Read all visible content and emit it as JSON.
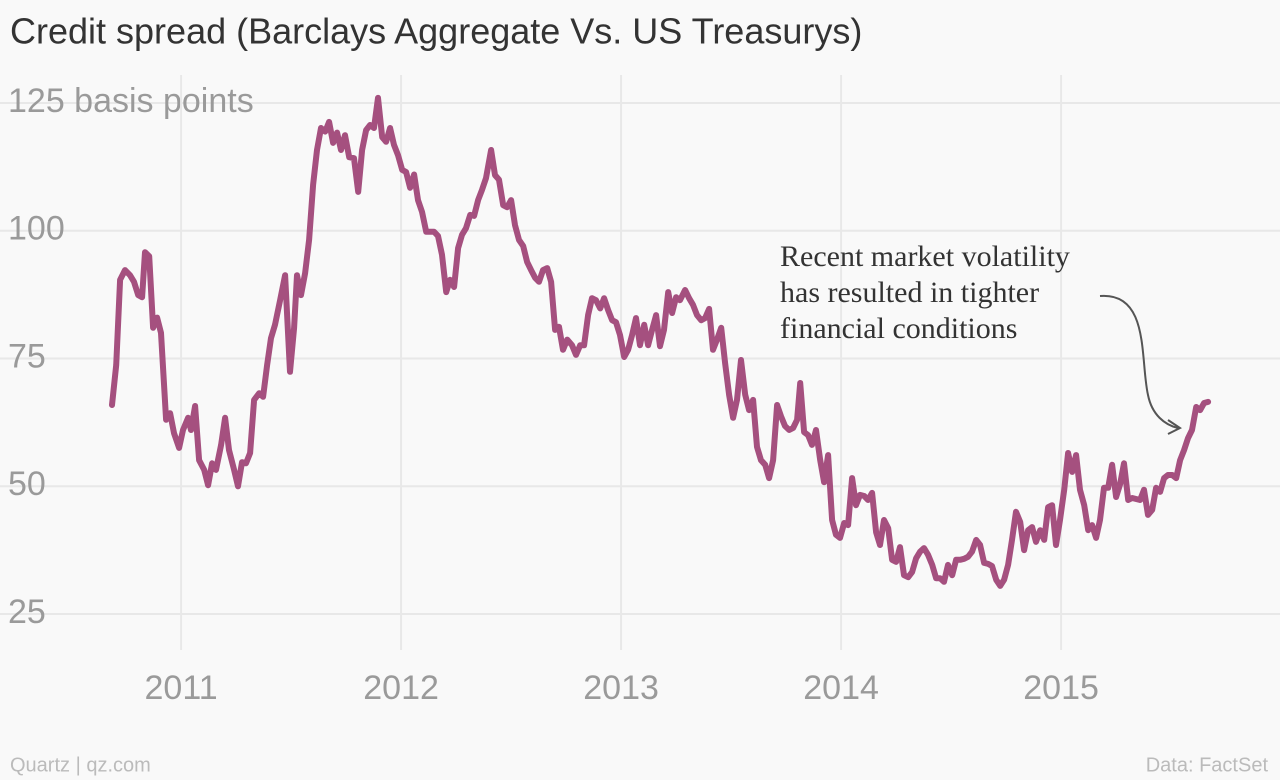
{
  "chart_data": {
    "type": "line",
    "title": "Credit spread (Barclays Aggregate Vs. US Treasurys)",
    "annotation": [
      "Recent market volatility",
      "has resulted in tighter",
      "financial conditions"
    ],
    "credit": "Quartz | qz.com",
    "source": "Data: FactSet",
    "x": [
      2010.686,
      2010.705,
      2010.723,
      2010.745,
      2010.768,
      2010.786,
      2010.805,
      2010.823,
      2010.836,
      2010.855,
      2010.873,
      2010.891,
      2010.909,
      2010.932,
      2010.95,
      2010.968,
      2010.991,
      2011.009,
      2011.032,
      2011.045,
      2011.064,
      2011.082,
      2011.105,
      2011.123,
      2011.141,
      2011.159,
      2011.182,
      2011.2,
      2011.218,
      2011.241,
      2011.259,
      2011.277,
      2011.295,
      2011.314,
      2011.332,
      2011.355,
      2011.373,
      2011.391,
      2011.409,
      2011.427,
      2011.45,
      2011.473,
      2011.495,
      2011.514,
      2011.527,
      2011.545,
      2011.564,
      2011.582,
      2011.6,
      2011.618,
      2011.636,
      2011.655,
      2011.673,
      2011.691,
      2011.709,
      2011.727,
      2011.745,
      2011.764,
      2011.786,
      2011.805,
      2011.823,
      2011.841,
      2011.859,
      2011.877,
      2011.895,
      2011.914,
      2011.932,
      2011.95,
      2011.968,
      2011.986,
      2012.005,
      2012.023,
      2012.041,
      2012.059,
      2012.077,
      2012.095,
      2012.114,
      2012.132,
      2012.15,
      2012.168,
      2012.186,
      2012.205,
      2012.223,
      2012.241,
      2012.259,
      2012.277,
      2012.295,
      2012.314,
      2012.332,
      2012.35,
      2012.368,
      2012.386,
      2012.409,
      2012.427,
      2012.445,
      2012.464,
      2012.482,
      2012.5,
      2012.518,
      2012.536,
      2012.555,
      2012.573,
      2012.591,
      2012.609,
      2012.627,
      2012.645,
      2012.664,
      2012.682,
      2012.7,
      2012.718,
      2012.736,
      2012.755,
      2012.777,
      2012.795,
      2012.814,
      2012.832,
      2012.85,
      2012.868,
      2012.886,
      2012.905,
      2012.923,
      2012.941,
      2012.959,
      2012.977,
      2012.995,
      2013.014,
      2013.032,
      2013.05,
      2013.068,
      2013.086,
      2013.105,
      2013.123,
      2013.141,
      2013.159,
      2013.177,
      2013.195,
      2013.214,
      2013.232,
      2013.25,
      2013.268,
      2013.291,
      2013.309,
      2013.327,
      2013.345,
      2013.364,
      2013.382,
      2013.4,
      2013.418,
      2013.436,
      2013.455,
      2013.473,
      2013.491,
      2013.509,
      2013.527,
      2013.545,
      2013.564,
      2013.582,
      2013.6,
      2013.618,
      2013.636,
      2013.655,
      2013.673,
      2013.691,
      2013.709,
      2013.727,
      2013.745,
      2013.764,
      2013.782,
      2013.8,
      2013.814,
      2013.832,
      2013.85,
      2013.868,
      2013.886,
      2013.905,
      2013.923,
      2013.941,
      2013.959,
      2013.977,
      2013.995,
      2014.014,
      2014.032,
      2014.05,
      2014.068,
      2014.086,
      2014.105,
      2014.123,
      2014.141,
      2014.159,
      2014.177,
      2014.195,
      2014.214,
      2014.232,
      2014.25,
      2014.268,
      2014.286,
      2014.305,
      2014.323,
      2014.341,
      2014.359,
      2014.377,
      2014.395,
      2014.414,
      2014.432,
      2014.45,
      2014.468,
      2014.486,
      2014.505,
      2014.523,
      2014.541,
      2014.559,
      2014.577,
      2014.595,
      2014.614,
      2014.632,
      2014.65,
      2014.668,
      2014.686,
      2014.705,
      2014.723,
      2014.741,
      2014.759,
      2014.777,
      2014.795,
      2014.814,
      2014.832,
      2014.85,
      2014.868,
      2014.886,
      2014.905,
      2014.923,
      2014.941,
      2014.959,
      2014.977,
      2014.995,
      2015.014,
      2015.032,
      2015.05,
      2015.068,
      2015.086,
      2015.105,
      2015.123,
      2015.141,
      2015.159,
      2015.177,
      2015.195,
      2015.214,
      2015.232,
      2015.25,
      2015.268,
      2015.286,
      2015.305,
      2015.323,
      2015.341,
      2015.359,
      2015.377,
      2015.395,
      2015.414,
      2015.432,
      2015.45,
      2015.468,
      2015.486,
      2015.505,
      2015.523,
      2015.541,
      2015.559,
      2015.577,
      2015.595,
      2015.614,
      2015.632,
      2015.65,
      2015.668
    ],
    "series": [
      {
        "color": "#a5507f",
        "values": [
          65.9,
          73.7,
          90.4,
          92.3,
          91.3,
          90,
          87.4,
          87,
          95.8,
          95,
          81,
          83,
          80,
          63,
          64.3,
          60.4,
          57.5,
          61,
          63.4,
          61,
          65.7,
          55.1,
          53.2,
          50.2,
          54.5,
          53.2,
          58.1,
          63.4,
          57.1,
          53.2,
          50,
          54.7,
          54.5,
          56.5,
          66.9,
          68.2,
          67.5,
          73.7,
          79,
          81.6,
          86.4,
          91.3,
          72.4,
          81,
          91.3,
          87.4,
          91.7,
          98.2,
          109,
          115.8,
          120.1,
          119.4,
          121.3,
          117.2,
          119.2,
          115.8,
          118.7,
          114.4,
          114.2,
          107.6,
          115.8,
          119.7,
          120.7,
          120.1,
          126,
          118.3,
          117.4,
          120.1,
          116.8,
          114.8,
          111.9,
          111.5,
          108.4,
          111,
          106,
          103.7,
          99.8,
          99.8,
          99.8,
          99,
          95.3,
          88,
          90.4,
          89,
          96.6,
          99.2,
          100.5,
          103.1,
          102.9,
          106,
          108,
          110.3,
          115.8,
          110.9,
          110,
          105,
          104.6,
          106,
          101.1,
          98.2,
          97,
          93.9,
          92.3,
          90.8,
          90,
          92.3,
          92.7,
          90,
          80.6,
          81.2,
          76.7,
          78.7,
          77.6,
          75.7,
          77.6,
          77.6,
          83.5,
          86.8,
          86.4,
          84.8,
          86.8,
          84.5,
          82.5,
          82.1,
          79.6,
          75.3,
          76.7,
          79.6,
          82.9,
          77.6,
          81.6,
          77.6,
          80.6,
          83.5,
          77.4,
          80.6,
          88,
          83.9,
          87,
          86.4,
          88.4,
          86.8,
          85.5,
          83.5,
          82.5,
          82.9,
          84.7,
          76.7,
          78.7,
          81,
          74.1,
          67.9,
          63.4,
          66.9,
          74.7,
          67.9,
          64.9,
          66.9,
          57.7,
          55.1,
          54.2,
          51.6,
          55.1,
          65.9,
          63.7,
          61.8,
          61,
          61.4,
          63,
          70.2,
          60.6,
          60,
          58.1,
          61,
          55.1,
          50.8,
          56.1,
          43.4,
          40.5,
          39.9,
          42.8,
          42.4,
          51.6,
          46.3,
          48.3,
          48.1,
          47.3,
          48.7,
          41,
          38.5,
          43.4,
          41.8,
          35.6,
          35.2,
          38.1,
          32.6,
          32.2,
          33.2,
          35.9,
          37.2,
          37.9,
          36.6,
          34.6,
          32,
          32,
          31.3,
          34.6,
          32.6,
          35.6,
          35.6,
          35.8,
          36.2,
          37.2,
          39.5,
          38.5,
          35,
          34.8,
          34.4,
          31.7,
          30.5,
          31.7,
          34.6,
          39.5,
          45,
          43,
          37.5,
          41.4,
          42,
          39.1,
          41.4,
          39.5,
          45.9,
          46.3,
          38.5,
          43.4,
          49.3,
          56.5,
          52.8,
          56.1,
          49.3,
          46.3,
          41.4,
          42.4,
          39.9,
          43.4,
          49.7,
          49.7,
          54.2,
          47.9,
          50.4,
          54.5,
          47.3,
          47.7,
          47.5,
          47.3,
          49.3,
          44.4,
          45.4,
          49.7,
          48.9,
          51.6,
          52.2,
          52.2,
          51.6,
          55.1,
          57.1,
          59.4,
          61,
          65.5,
          64.9,
          66.3,
          66.5
        ]
      }
    ],
    "xlim": [
      2010.177,
      2015.995
    ],
    "xticks": [
      2011,
      2012,
      2013,
      2014,
      2015
    ],
    "ylim": [
      25,
      125
    ],
    "yticks": [
      {
        "value": 125,
        "label": "125 basis points"
      },
      100,
      75,
      50,
      25
    ],
    "grid": true
  }
}
